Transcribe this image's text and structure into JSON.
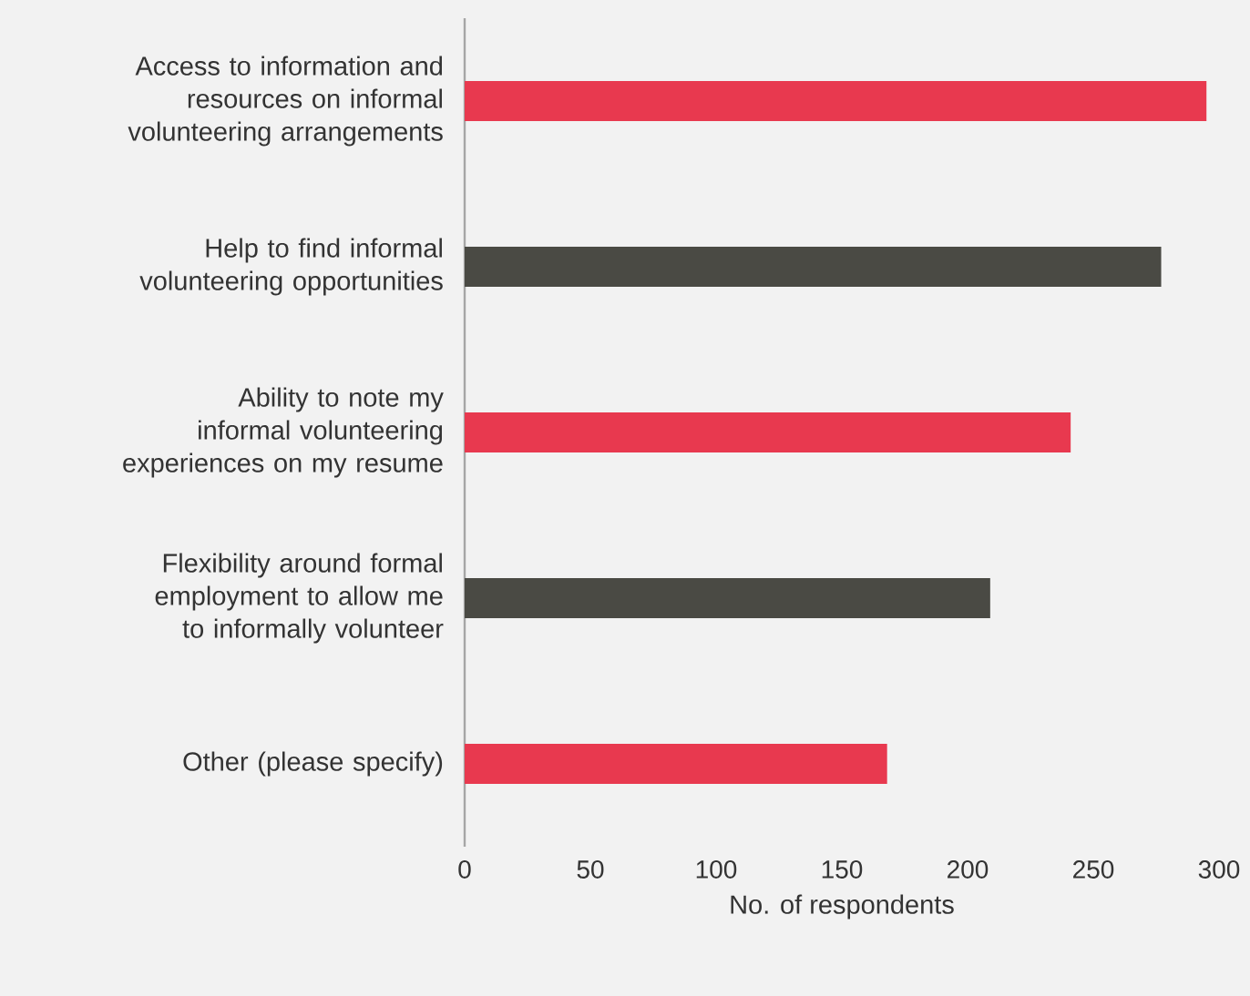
{
  "chart_data": {
    "type": "bar",
    "orientation": "horizontal",
    "xlabel": "No. of respondents",
    "categories": [
      "Access to information and resources on informal volunteering arrangements",
      "Help to find informal volunteering opportunities",
      "Ability to note my informal volunteering experiences on my resume",
      "Flexibility around formal employment to allow me to informally volunteer",
      "Other (please specify)"
    ],
    "values": [
      295,
      277,
      241,
      209,
      168
    ],
    "colors": [
      "#e8394f",
      "#4a4a44",
      "#e8394f",
      "#4a4a44",
      "#e8394f"
    ],
    "xlim": [
      0,
      300
    ],
    "xticks": [
      0,
      50,
      100,
      150,
      200,
      250,
      300
    ]
  }
}
